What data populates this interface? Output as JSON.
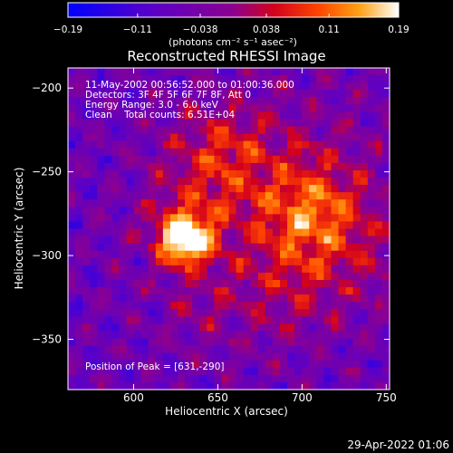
{
  "chart_data": {
    "type": "heatmap",
    "title": "Reconstructed RHESSI Image",
    "xlabel": "Heliocentric X (arcsec)",
    "ylabel": "Heliocentric Y (arcsec)",
    "xlim": [
      561,
      752
    ],
    "ylim": [
      -380,
      -188
    ],
    "xticks": [
      600,
      650,
      700,
      750
    ],
    "yticks": [
      -200,
      -250,
      -300,
      -350
    ],
    "x_tick_labels": [
      "600",
      "650",
      "700",
      "750"
    ],
    "y_tick_labels": [
      "−200",
      "−250",
      "−300",
      "−350"
    ],
    "colorbar": {
      "min": -0.19,
      "max": 0.19,
      "tick_values": [
        -0.19,
        -0.11,
        -0.038,
        0.038,
        0.11,
        0.19
      ],
      "tick_labels": [
        "−0.19",
        "−0.11",
        "−0.038",
        "0.038",
        "0.11",
        "0.19"
      ],
      "unit_label": "(photons cm⁻² s⁻¹ asec⁻²)"
    },
    "annotations": [
      "11-May-2002 00:56:52.000 to 01:00:36.000",
      "Detectors: 3F 4F 5F 6F 7F 8F, Att 0",
      "Energy Range: 3.0 - 6.0 keV",
      "Clean    Total counts: 6.51E+04"
    ],
    "peak_label": "Position of Peak = [631,-290]",
    "peak": {
      "x": 631,
      "y": -290,
      "value": 0.19
    },
    "sources": [
      {
        "x": 631,
        "y": -290,
        "amplitude": 0.26,
        "sigma": 10
      },
      {
        "x": 628,
        "y": -283,
        "amplitude": 0.07,
        "sigma": 20
      },
      {
        "x": 650,
        "y": -240,
        "amplitude": 0.1,
        "sigma": 22
      },
      {
        "x": 705,
        "y": -275,
        "amplitude": 0.1,
        "sigma": 18
      },
      {
        "x": 700,
        "y": -265,
        "amplitude": 0.08,
        "sigma": 38
      },
      {
        "x": 690,
        "y": -320,
        "amplitude": 0.06,
        "sigma": 25
      },
      {
        "x": 640,
        "y": -335,
        "amplitude": 0.04,
        "sigma": 18
      },
      {
        "x": 735,
        "y": -300,
        "amplitude": 0.04,
        "sigma": 20
      }
    ],
    "background": -0.06
  },
  "footer_timestamp": "29-Apr-2022 01:06"
}
